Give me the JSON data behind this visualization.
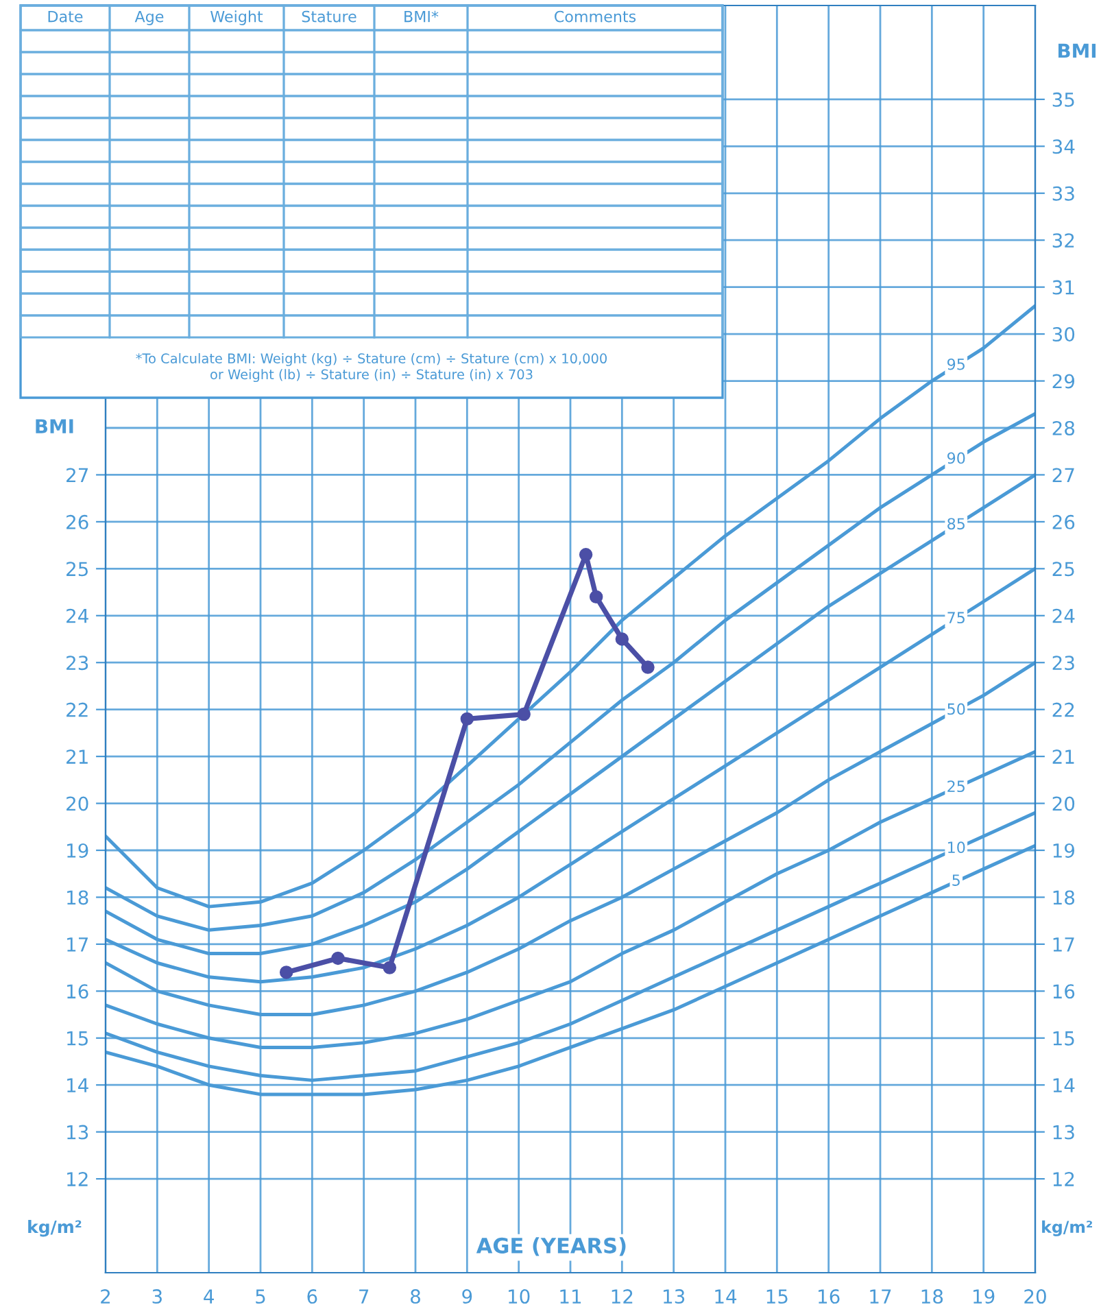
{
  "chart_data": {
    "type": "line",
    "xlabel": "AGE (YEARS)",
    "ylabel": "BMI",
    "y2label": "BMI",
    "annotations": [
      "Date",
      "Age",
      "Weight",
      "Stature",
      "BMI*",
      "Comments",
      "*To Calculate BMI: Weight (kg) ÷ Stature (cm) ÷ Stature (cm) x 10,000\nor Weight (lb) ÷ Stature (in) ÷ Stature (in) x 703",
      "kg/m²",
      "kg/m²"
    ],
    "xlim": [
      2,
      20
    ],
    "xticks": [
      2,
      3,
      4,
      5,
      6,
      7,
      8,
      9,
      10,
      11,
      12,
      13,
      14,
      15,
      16,
      17,
      18,
      19,
      20
    ],
    "ylim": [
      10,
      37
    ],
    "yticks": [
      12,
      13,
      14,
      15,
      16,
      17,
      18,
      19,
      20,
      21,
      22,
      23,
      24,
      25,
      26,
      27
    ],
    "y2lim": [
      10,
      37
    ],
    "y2ticks": [
      12,
      13,
      14,
      15,
      16,
      17,
      18,
      19,
      20,
      21,
      22,
      23,
      24,
      25,
      26,
      27,
      28,
      29,
      30,
      31,
      32,
      33,
      34,
      35
    ],
    "grid": true,
    "line_style": "solid",
    "x": [
      2,
      3,
      4,
      5,
      6,
      7,
      8,
      9,
      10,
      11,
      12,
      13,
      14,
      15,
      16,
      17,
      18,
      19,
      20
    ],
    "series": [
      {
        "name": "95",
        "color": "#4a9ad6",
        "marker": "none",
        "values": [
          19.3,
          18.2,
          17.8,
          17.9,
          18.3,
          19.0,
          19.8,
          20.8,
          21.8,
          22.8,
          23.9,
          24.8,
          25.7,
          26.5,
          27.3,
          28.2,
          29.0,
          29.7,
          30.6
        ]
      },
      {
        "name": "90",
        "color": "#4a9ad6",
        "marker": "none",
        "values": [
          18.2,
          17.6,
          17.3,
          17.4,
          17.6,
          18.1,
          18.8,
          19.6,
          20.4,
          21.3,
          22.2,
          23.0,
          23.9,
          24.7,
          25.5,
          26.3,
          27.0,
          27.7,
          28.3
        ]
      },
      {
        "name": "85",
        "color": "#4a9ad6",
        "marker": "none",
        "values": [
          17.7,
          17.1,
          16.8,
          16.8,
          17.0,
          17.4,
          17.9,
          18.6,
          19.4,
          20.2,
          21.0,
          21.8,
          22.6,
          23.4,
          24.2,
          24.9,
          25.6,
          26.3,
          27.0
        ]
      },
      {
        "name": "75",
        "color": "#4a9ad6",
        "marker": "none",
        "values": [
          17.1,
          16.6,
          16.3,
          16.2,
          16.3,
          16.5,
          16.9,
          17.4,
          18.0,
          18.7,
          19.4,
          20.1,
          20.8,
          21.5,
          22.2,
          22.9,
          23.6,
          24.3,
          25.0
        ]
      },
      {
        "name": "50",
        "color": "#4a9ad6",
        "marker": "none",
        "values": [
          16.6,
          16.0,
          15.7,
          15.5,
          15.5,
          15.7,
          16.0,
          16.4,
          16.9,
          17.5,
          18.0,
          18.6,
          19.2,
          19.8,
          20.5,
          21.1,
          21.7,
          22.3,
          23.0
        ]
      },
      {
        "name": "25",
        "color": "#4a9ad6",
        "marker": "none",
        "values": [
          15.7,
          15.3,
          15.0,
          14.8,
          14.8,
          14.9,
          15.1,
          15.4,
          15.8,
          16.2,
          16.8,
          17.3,
          17.9,
          18.5,
          19.0,
          19.6,
          20.1,
          20.6,
          21.1
        ]
      },
      {
        "name": "10",
        "color": "#4a9ad6",
        "marker": "none",
        "values": [
          15.1,
          14.7,
          14.4,
          14.2,
          14.1,
          14.2,
          14.3,
          14.6,
          14.9,
          15.3,
          15.8,
          16.3,
          16.8,
          17.3,
          17.8,
          18.3,
          18.8,
          19.3,
          19.8
        ]
      },
      {
        "name": "5",
        "color": "#4a9ad6",
        "marker": "none",
        "values": [
          14.7,
          14.4,
          14.0,
          13.8,
          13.8,
          13.8,
          13.9,
          14.1,
          14.4,
          14.8,
          15.2,
          15.6,
          16.1,
          16.6,
          17.1,
          17.6,
          18.1,
          18.6,
          19.1
        ]
      },
      {
        "color": "#4b4fa6",
        "marker": "circle",
        "x": [
          5.5,
          6.5,
          7.5,
          9.0,
          10.1,
          11.3,
          11.5,
          12.0,
          12.5
        ],
        "values": [
          16.4,
          16.7,
          16.5,
          21.8,
          21.9,
          25.3,
          24.4,
          23.5,
          22.9
        ]
      }
    ]
  }
}
